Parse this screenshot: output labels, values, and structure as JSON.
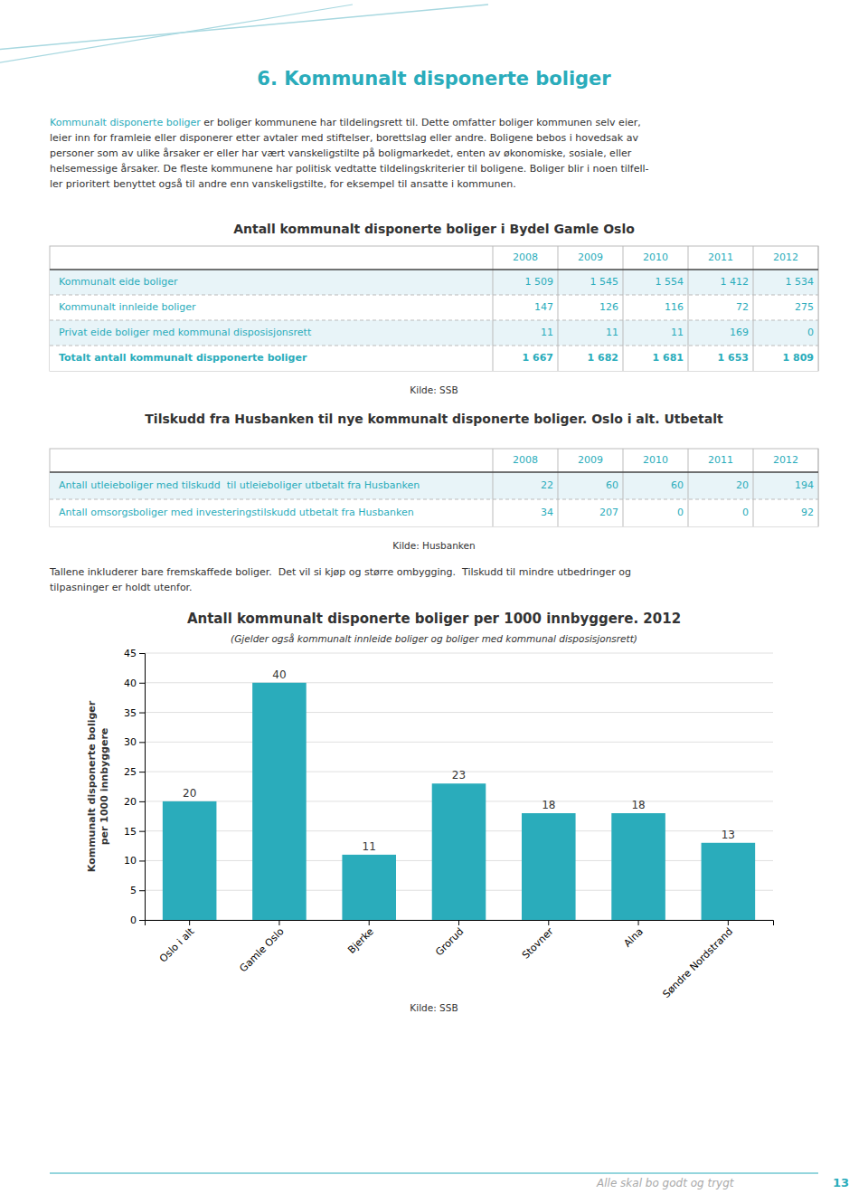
{
  "chart_data": {
    "type": "bar",
    "title": "Antall kommunalt disponerte boliger per 1000 innbyggere. 2012",
    "subtitle": "(Gjelder også kommunalt innleide boliger og boliger med kommunal disposisjonsrett)",
    "categories": [
      "Oslo i alt",
      "Gamle Oslo",
      "Bjerke",
      "Grorud",
      "Stovner",
      "Alna",
      "Søndre Nordstrand"
    ],
    "values": [
      20,
      40,
      11,
      23,
      18,
      18,
      13
    ],
    "color": "#2AACBB",
    "ylabel": "Kommunalt disponerte boliger\nper 1000 innbyggere",
    "ylim": [
      0,
      45
    ],
    "yticks": [
      0,
      5,
      10,
      15,
      20,
      25,
      30,
      35,
      40,
      45
    ],
    "grid": true,
    "data_labels": true,
    "source": "Kilde: SSB"
  },
  "page": {
    "title": "6. Kommunalt disponerte boliger",
    "intro_link": "Kommunalt disponerte boliger",
    "intro": [
      " er boliger kommunene har tildelingsrett til. Dette omfatter boliger kommunen selv eier,",
      "leier inn for framleie eller disponerer etter avtaler med stiftelser, borettslag eller andre. Boligene bebos i hovedsak av",
      "personer som av ulike årsaker er eller har vært vanskeligstilte på boligmarkedet, enten av økonomiske, sosiale, eller",
      "helsemessige årsaker. De fleste kommunene har politisk vedtatte tildelingskriterier til boligene. Boliger blir i noen tilfell-",
      "ler prioritert benyttet også til andre enn vanskeligstilte, for eksempel til ansatte i kommunen."
    ],
    "tables": [
      {
        "title": "Antall kommunalt disponerte boliger i Bydel Gamle Oslo",
        "years": [
          "2008",
          "2009",
          "2010",
          "2011",
          "2012"
        ],
        "rows": [
          {
            "label": "Kommunalt eide boliger",
            "values": [
              "1 509",
              "1 545",
              "1 554",
              "1 412",
              "1 534"
            ],
            "bold": false
          },
          {
            "label": "Kommunalt innleide boliger",
            "values": [
              "147",
              "126",
              "116",
              "72",
              "275"
            ],
            "bold": false
          },
          {
            "label": "Privat eide boliger med kommunal disposisjonsrett",
            "values": [
              "11",
              "11",
              "11",
              "169",
              "0"
            ],
            "bold": false
          },
          {
            "label": "Totalt antall kommunalt dispponerte boliger",
            "values": [
              "1 667",
              "1 682",
              "1 681",
              "1 653",
              "1 809"
            ],
            "bold": true
          }
        ],
        "source": "Kilde: SSB"
      },
      {
        "title": "Tilskudd fra Husbanken til nye kommunalt disponerte boliger. Oslo i alt. Utbetalt",
        "years": [
          "2008",
          "2009",
          "2010",
          "2011",
          "2012"
        ],
        "rows": [
          {
            "label": "Antall utleieboliger med tilskudd  til utleieboliger utbetalt fra Husbanken",
            "values": [
              "22",
              "60",
              "60",
              "20",
              "194"
            ],
            "bold": false
          },
          {
            "label": "Antall omsorgsboliger med investeringstilskudd utbetalt fra Husbanken",
            "values": [
              "34",
              "207",
              "0",
              "0",
              "92"
            ],
            "bold": false
          }
        ],
        "source": "Kilde: Husbanken"
      }
    ],
    "note": [
      "Tallene inkluderer bare fremskaffede boliger.  Det vil si kjøp og større ombygging.  Tilskudd til mindre utbedringer og",
      "tilpasninger er holdt utenfor."
    ],
    "footer": "Alle skal bo godt og trygt",
    "page_number": "13"
  }
}
